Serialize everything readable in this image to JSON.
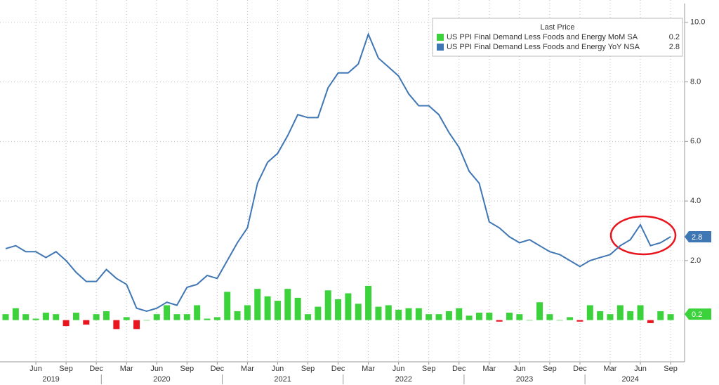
{
  "chart_data": {
    "type": "combo",
    "legend_title": "Last Price",
    "legend": "top-right",
    "grid": true,
    "categories": [
      null,
      null,
      null,
      "Jun",
      null,
      null,
      "Sep",
      null,
      null,
      "Dec",
      null,
      null,
      "Mar",
      null,
      null,
      "Jun",
      null,
      null,
      "Sep",
      null,
      null,
      "Dec",
      null,
      null,
      "Mar",
      null,
      null,
      "Jun",
      null,
      null,
      "Sep",
      null,
      null,
      "Dec",
      null,
      null,
      "Mar",
      null,
      null,
      "Jun",
      null,
      null,
      "Sep",
      null,
      null,
      "Dec",
      null,
      null,
      "Mar",
      null,
      null,
      "Jun",
      null,
      null,
      "Sep",
      null,
      null,
      "Dec",
      null,
      null,
      "Mar",
      null,
      null,
      "Jun",
      null,
      null,
      "Sep"
    ],
    "years": [
      "2019",
      "2020",
      "2021",
      "2022",
      "2023",
      "2024"
    ],
    "series": [
      {
        "name": "US PPI Final Demand Less Foods and Energy MoM SA",
        "type": "bar",
        "color": "#3bd23b",
        "negative_color": "#e8141e",
        "values": [
          0.2,
          0.4,
          0.2,
          0.05,
          0.25,
          0.2,
          -0.2,
          0.25,
          -0.15,
          0.2,
          0.3,
          -0.3,
          0.1,
          -0.3,
          0.0,
          0.2,
          0.5,
          0.2,
          0.2,
          0.5,
          0.05,
          0.1,
          0.95,
          0.3,
          0.5,
          1.05,
          0.8,
          0.65,
          1.05,
          0.75,
          0.2,
          0.45,
          1.0,
          0.7,
          0.9,
          0.55,
          1.15,
          0.45,
          0.5,
          0.35,
          0.4,
          0.4,
          0.2,
          0.2,
          0.3,
          0.4,
          0.15,
          0.25,
          0.25,
          -0.05,
          0.25,
          0.2,
          0.0,
          0.6,
          0.2,
          0.0,
          0.1,
          -0.05,
          0.5,
          0.3,
          0.2,
          0.5,
          0.3,
          0.5,
          -0.1,
          0.3,
          0.2
        ]
      },
      {
        "name": "US PPI Final Demand Less Foods and Energy YoY NSA",
        "type": "line",
        "color": "#3f76b4",
        "values": [
          2.4,
          2.5,
          2.3,
          2.3,
          2.1,
          2.3,
          2.0,
          1.6,
          1.3,
          1.3,
          1.7,
          1.4,
          1.2,
          0.4,
          0.3,
          0.4,
          0.6,
          0.5,
          1.1,
          1.2,
          1.5,
          1.4,
          2.0,
          2.6,
          3.1,
          4.6,
          5.3,
          5.6,
          6.2,
          6.9,
          6.8,
          6.8,
          7.8,
          8.3,
          8.3,
          8.6,
          9.6,
          8.8,
          8.5,
          8.2,
          7.6,
          7.2,
          7.2,
          6.9,
          6.3,
          5.8,
          5.0,
          4.6,
          3.3,
          3.1,
          2.8,
          2.6,
          2.7,
          2.5,
          2.3,
          2.2,
          2.0,
          1.8,
          2.0,
          2.1,
          2.2,
          2.5,
          2.7,
          3.2,
          2.5,
          2.6,
          2.8
        ]
      }
    ],
    "ylim": [
      -1.4,
      10.75
    ],
    "yticks": [
      {
        "value": 2,
        "label": "2.0"
      },
      {
        "value": 4,
        "label": "4.0"
      },
      {
        "value": 6,
        "label": "6.0"
      },
      {
        "value": 8,
        "label": "8.0"
      },
      {
        "value": 10,
        "label": "10.0"
      }
    ]
  }
}
